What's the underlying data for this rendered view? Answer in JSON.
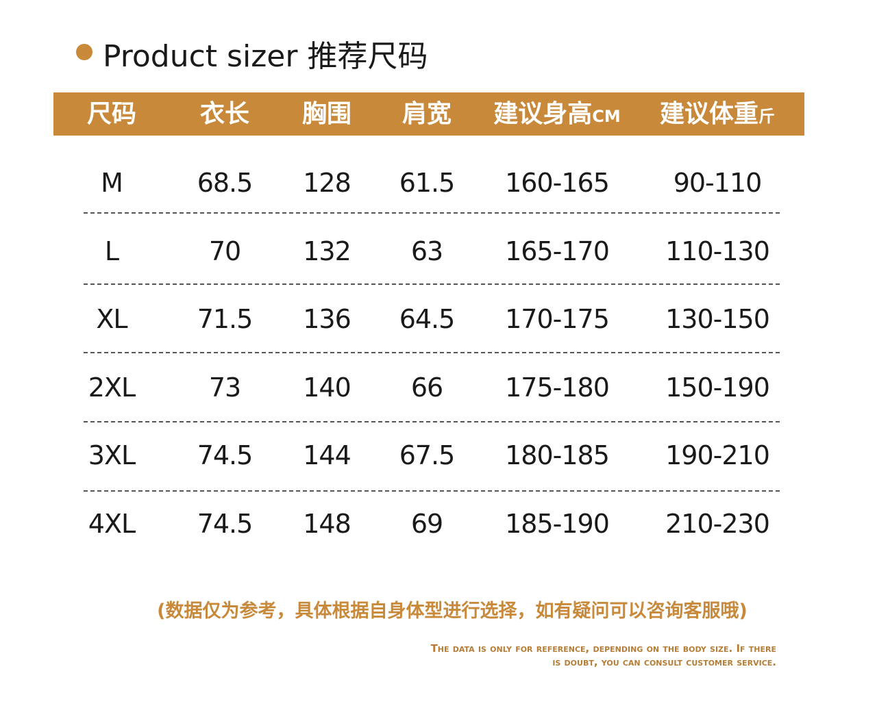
{
  "header": {
    "title": "Product sizer 推荐尺码"
  },
  "table": {
    "headers": [
      "尺码",
      "衣长",
      "胸围",
      "肩宽",
      "建议身高",
      "建议体重"
    ],
    "header_units": {
      "4": "CM",
      "5": "斤"
    },
    "rows": [
      [
        "M",
        "68.5",
        "128",
        "61.5",
        "160-165",
        "90-110"
      ],
      [
        "L",
        "70",
        "132",
        "63",
        "165-170",
        "110-130"
      ],
      [
        "XL",
        "71.5",
        "136",
        "64.5",
        "170-175",
        "130-150"
      ],
      [
        "2XL",
        "73",
        "140",
        "66",
        "175-180",
        "150-190"
      ],
      [
        "3XL",
        "74.5",
        "144",
        "67.5",
        "180-185",
        "190-210"
      ],
      [
        "4XL",
        "74.5",
        "148",
        "69",
        "185-190",
        "210-230"
      ]
    ]
  },
  "notes": {
    "chinese": "(数据仅为参考，具体根据自身体型进行选择，如有疑问可以咨询客服哦)",
    "english": [
      "The data is only for reference, depending on the body size. If there",
      "is doubt, you can consult customer service."
    ]
  }
}
